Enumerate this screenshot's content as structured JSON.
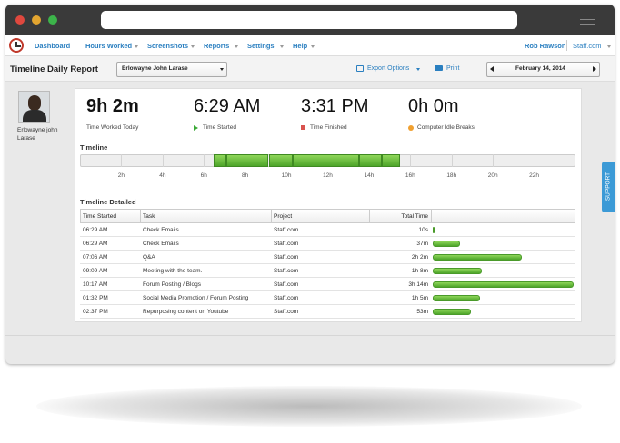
{
  "nav": {
    "items": [
      "Dashboard",
      "Hours Worked",
      "Screenshots",
      "Reports",
      "Settings",
      "Help"
    ],
    "user": "Rob Rawson",
    "site": "Staff.com"
  },
  "header": {
    "title": "Timeline Daily Report",
    "employee": "Erlowayne John Larase",
    "export": "Export Options",
    "print": "Print",
    "date": "February 14, 2014"
  },
  "profile": {
    "name": "Erlowayne john Larase"
  },
  "stats": [
    {
      "value": "9h 2m",
      "label": "Time Worked Today"
    },
    {
      "value": "6:29 AM",
      "label": "Time Started"
    },
    {
      "value": "3:31 PM",
      "label": "Time Finished"
    },
    {
      "value": "0h 0m",
      "label": "Computer Idle Breaks"
    }
  ],
  "timeline": {
    "title": "Timeline",
    "ticks": [
      "2h",
      "4h",
      "6h",
      "8h",
      "10h",
      "12h",
      "14h",
      "16h",
      "18h",
      "20h",
      "22h"
    ]
  },
  "table": {
    "title": "Timeline Detailed",
    "columns": [
      "Time Started",
      "Task",
      "Project",
      "Total Time"
    ],
    "rows": [
      [
        "06:29 AM",
        "Check Emails",
        "Staff.com",
        "10s"
      ],
      [
        "06:29 AM",
        "Check Emails",
        "Staff.com",
        "37m"
      ],
      [
        "07:06 AM",
        "Q&A",
        "Staff.com",
        "2h 2m"
      ],
      [
        "09:09 AM",
        "Meeting with the team.",
        "Staff.com",
        "1h 8m"
      ],
      [
        "10:17 AM",
        "Forum Posting / Blogs",
        "Staff.com",
        "3h 14m"
      ],
      [
        "01:32 PM",
        "Social Media Promotion / Forum Posting",
        "Staff.com",
        "1h 5m"
      ],
      [
        "02:37 PM",
        "Repurposing content on Youtube",
        "Staff.com",
        "53m"
      ]
    ]
  },
  "support": "SUPPORT"
}
